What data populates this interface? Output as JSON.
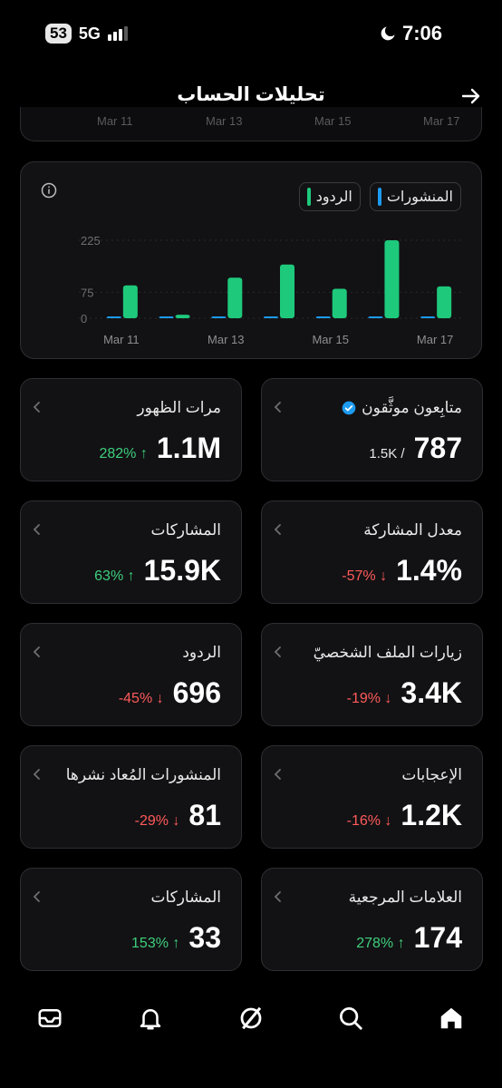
{
  "status_bar": {
    "battery": "53",
    "network": "5G",
    "time": "7:06"
  },
  "header": {
    "title": "تحليلات الحساب"
  },
  "prev_card": {
    "labels": [
      "Mar 11",
      "Mar 13",
      "Mar 15",
      "Mar 17"
    ]
  },
  "chart_data": {
    "type": "bar",
    "categories": [
      "Mar 11",
      "Mar 12",
      "Mar 13",
      "Mar 14",
      "Mar 15",
      "Mar 16",
      "Mar 17"
    ],
    "x_tick_labels": [
      "Mar 11",
      "Mar 13",
      "Mar 15",
      "Mar 17"
    ],
    "y_ticks": [
      "0",
      "75",
      "225"
    ],
    "ylim": [
      0,
      225
    ],
    "series": [
      {
        "name": "المنشورات",
        "color": "#1d9bf0",
        "values": [
          1,
          1,
          1,
          3,
          1,
          1,
          0
        ]
      },
      {
        "name": "الردود",
        "color": "#1ec97c",
        "values": [
          95,
          10,
          117,
          155,
          85,
          225,
          92
        ]
      }
    ]
  },
  "tiles": [
    {
      "label": "متابِعون موثَّقون",
      "value": "787",
      "sub": "1.5K /",
      "verified": true
    },
    {
      "label": "مرات الظهور",
      "value": "1.1M",
      "change": "282% ↑",
      "dir": "up"
    },
    {
      "label": "معدل المشاركة",
      "value": "1.4%",
      "change": "-57% ↓",
      "dir": "down"
    },
    {
      "label": "المشاركات",
      "value": "15.9K",
      "change": "63% ↑",
      "dir": "up"
    },
    {
      "label": "زيارات الملف الشخصيّ",
      "value": "3.4K",
      "change": "-19% ↓",
      "dir": "down"
    },
    {
      "label": "الردود",
      "value": "696",
      "change": "-45% ↓",
      "dir": "down"
    },
    {
      "label": "الإعجابات",
      "value": "1.2K",
      "change": "-16% ↓",
      "dir": "down"
    },
    {
      "label": "المنشورات المُعاد نشرها",
      "value": "81",
      "change": "-29% ↓",
      "dir": "down"
    },
    {
      "label": "العلامات المرجعية",
      "value": "174",
      "change": "278% ↑",
      "dir": "up"
    },
    {
      "label": "المشاركات",
      "value": "33",
      "change": "153% ↑",
      "dir": "up"
    }
  ],
  "tabbar": [
    "home-icon",
    "search-icon",
    "grok-icon",
    "notifications-icon",
    "messages-icon"
  ]
}
